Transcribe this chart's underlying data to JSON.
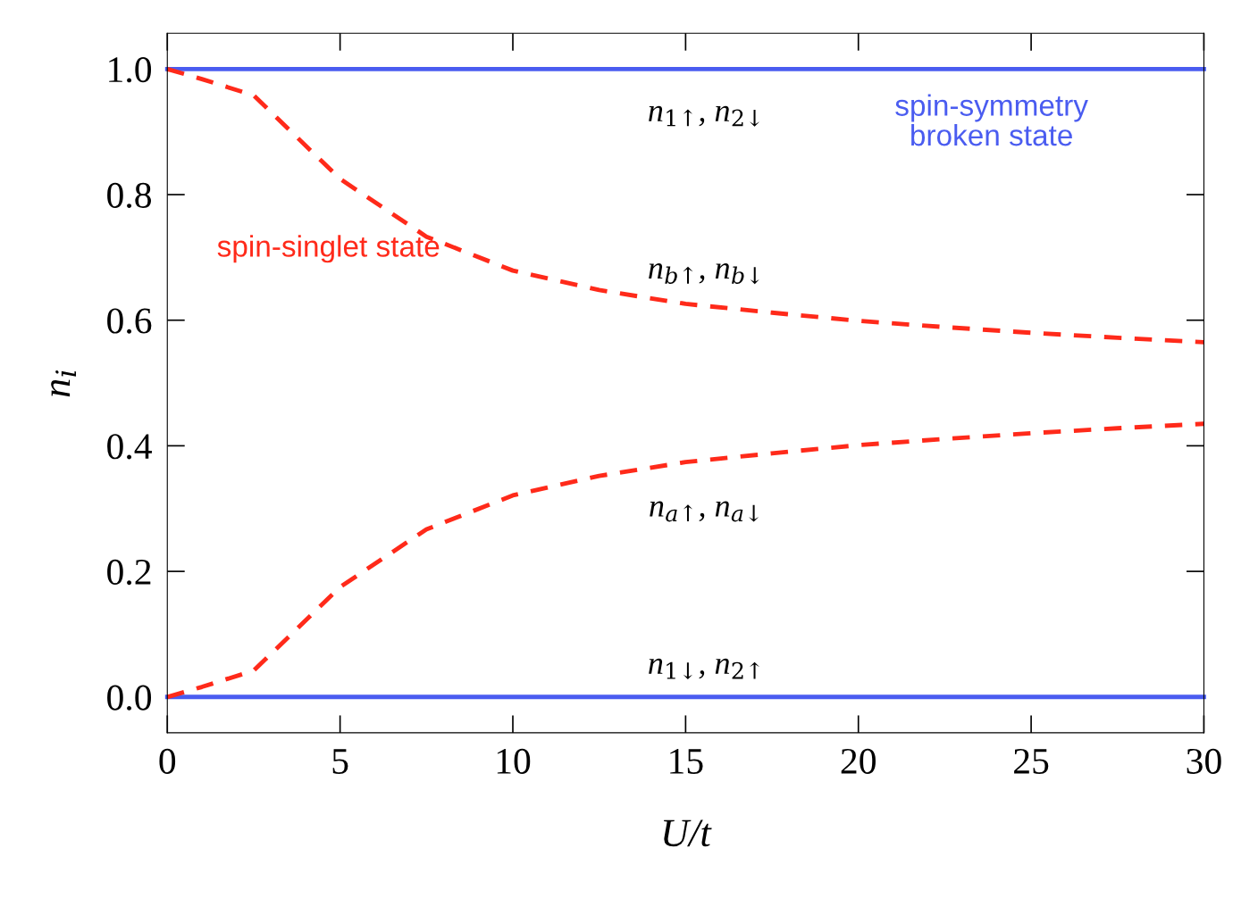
{
  "chart_data": {
    "type": "line",
    "xlabel": "U/t",
    "ylabel": "n$_{i}$",
    "x": [
      0,
      1,
      2.5,
      5,
      7.5,
      10,
      12.5,
      15,
      17.5,
      20,
      22.5,
      25,
      27.5,
      30
    ],
    "series": [
      {
        "name": "spin-symmetry\nbroken state",
        "color": "#4a5cf0",
        "line_style": "solid",
        "values": [
          1.0,
          1.0,
          1.0,
          1.0,
          1.0,
          1.0,
          1.0,
          1.0,
          1.0,
          1.0,
          1.0,
          1.0,
          1.0,
          1.0
        ]
      },
      {
        "color": "#4a5cf0",
        "line_style": "solid",
        "values": [
          0.0,
          0.0,
          0.0,
          0.0,
          0.0,
          0.0,
          0.0,
          0.0,
          0.0,
          0.0,
          0.0,
          0.0,
          0.0,
          0.0
        ]
      },
      {
        "name": "spin-singlet state",
        "color": "#ff2a1a",
        "line_style": "dashed",
        "values": [
          1.0,
          0.984,
          0.958,
          0.825,
          0.733,
          0.679,
          0.648,
          0.626,
          0.612,
          0.599,
          0.589,
          0.58,
          0.572,
          0.565
        ]
      },
      {
        "color": "#ff2a1a",
        "line_style": "dashed",
        "values": [
          0.0,
          0.016,
          0.042,
          0.175,
          0.267,
          0.321,
          0.352,
          0.374,
          0.388,
          0.401,
          0.411,
          0.42,
          0.428,
          0.435
        ]
      }
    ],
    "annotations": [
      "n$_{1↑}$, n$_{2↓}$",
      "n$_{b↑}$, n$_{b↓}$",
      "n$_{a↑}$, n$_{a↓}$",
      "n$_{1↓}$, n$_{2↑}$"
    ],
    "xlim": [
      0,
      30
    ],
    "xticks": [
      0,
      5,
      10,
      15,
      20,
      25,
      30
    ],
    "ylim": [
      -0.057,
      1.057
    ],
    "yticks": [
      {
        "value": 0,
        "label": "0.0"
      },
      {
        "value": 0.2,
        "label": "0.2"
      },
      {
        "value": 0.4,
        "label": "0.4"
      },
      {
        "value": 0.6,
        "label": "0.6"
      },
      {
        "value": 0.8,
        "label": "0.8"
      },
      {
        "value": 1.0,
        "label": "1.0"
      }
    ],
    "grid": false,
    "legend": false,
    "marker": "none"
  }
}
